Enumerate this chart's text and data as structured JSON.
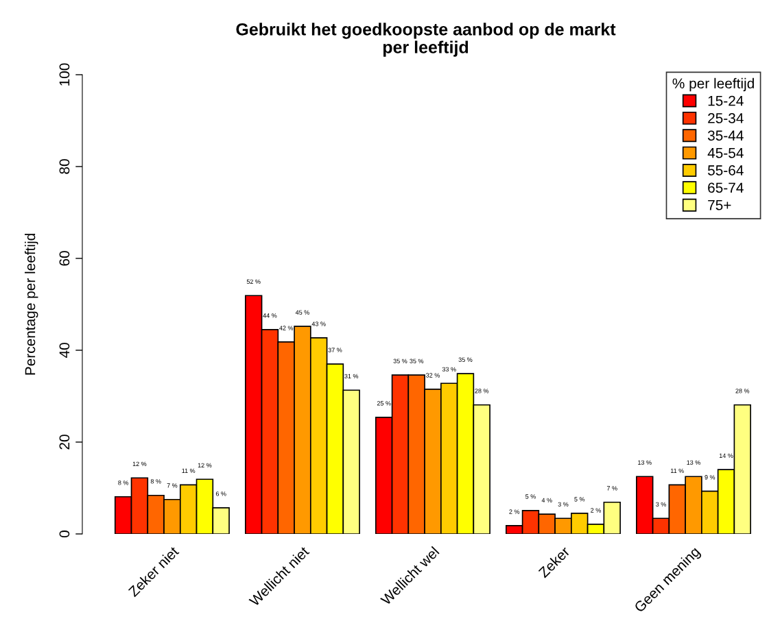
{
  "chart_data": {
    "type": "bar",
    "title": "Gebruikt het goedkoopste aanbod op de markt\nper leeftijd",
    "ylabel": "Percentage per leeftijd",
    "legend_title": "% per leeftijd",
    "categories": [
      "Zeker niet",
      "Wellicht niet",
      "Wellicht wel",
      "Zeker",
      "Geen mening"
    ],
    "series": [
      {
        "name": "15-24",
        "color": "#ff0000",
        "values": [
          8.1,
          51.9,
          25.4,
          1.8,
          12.5
        ],
        "value_labels": [
          "8 %",
          "52 %",
          "25 %",
          "2 %",
          "13 %"
        ]
      },
      {
        "name": "25-34",
        "color": "#ff3300",
        "values": [
          12.2,
          44.5,
          34.6,
          5.1,
          3.4
        ],
        "value_labels": [
          "12 %",
          "44 %",
          "35 %",
          "5 %",
          "3 %"
        ]
      },
      {
        "name": "35-44",
        "color": "#ff6600",
        "values": [
          8.4,
          41.8,
          34.6,
          4.3,
          10.7
        ],
        "value_labels": [
          "8 %",
          "42 %",
          "35 %",
          "4 %",
          "11 %"
        ]
      },
      {
        "name": "45-54",
        "color": "#ff9900",
        "values": [
          7.5,
          45.2,
          31.5,
          3.4,
          12.5
        ],
        "value_labels": [
          "7 %",
          "45 %",
          "32 %",
          "3 %",
          "13 %"
        ]
      },
      {
        "name": "55-64",
        "color": "#ffcc00",
        "values": [
          10.7,
          42.7,
          32.8,
          4.5,
          9.3
        ],
        "value_labels": [
          "11 %",
          "43 %",
          "33 %",
          "5 %",
          "9 %"
        ]
      },
      {
        "name": "65-74",
        "color": "#ffff00",
        "values": [
          11.9,
          37.0,
          34.9,
          2.1,
          14.0
        ],
        "value_labels": [
          "12 %",
          "37 %",
          "35 %",
          "2 %",
          "14 %"
        ]
      },
      {
        "name": "75+",
        "color": "#ffff80",
        "values": [
          5.7,
          31.3,
          28.1,
          6.9,
          28.1
        ],
        "value_labels": [
          "6 %",
          "31 %",
          "28 %",
          "7 %",
          "28 %"
        ]
      }
    ],
    "ylim": [
      0,
      100
    ],
    "yticks": [
      0,
      20,
      40,
      60,
      80,
      100
    ],
    "grid": false,
    "legend": "top right"
  }
}
